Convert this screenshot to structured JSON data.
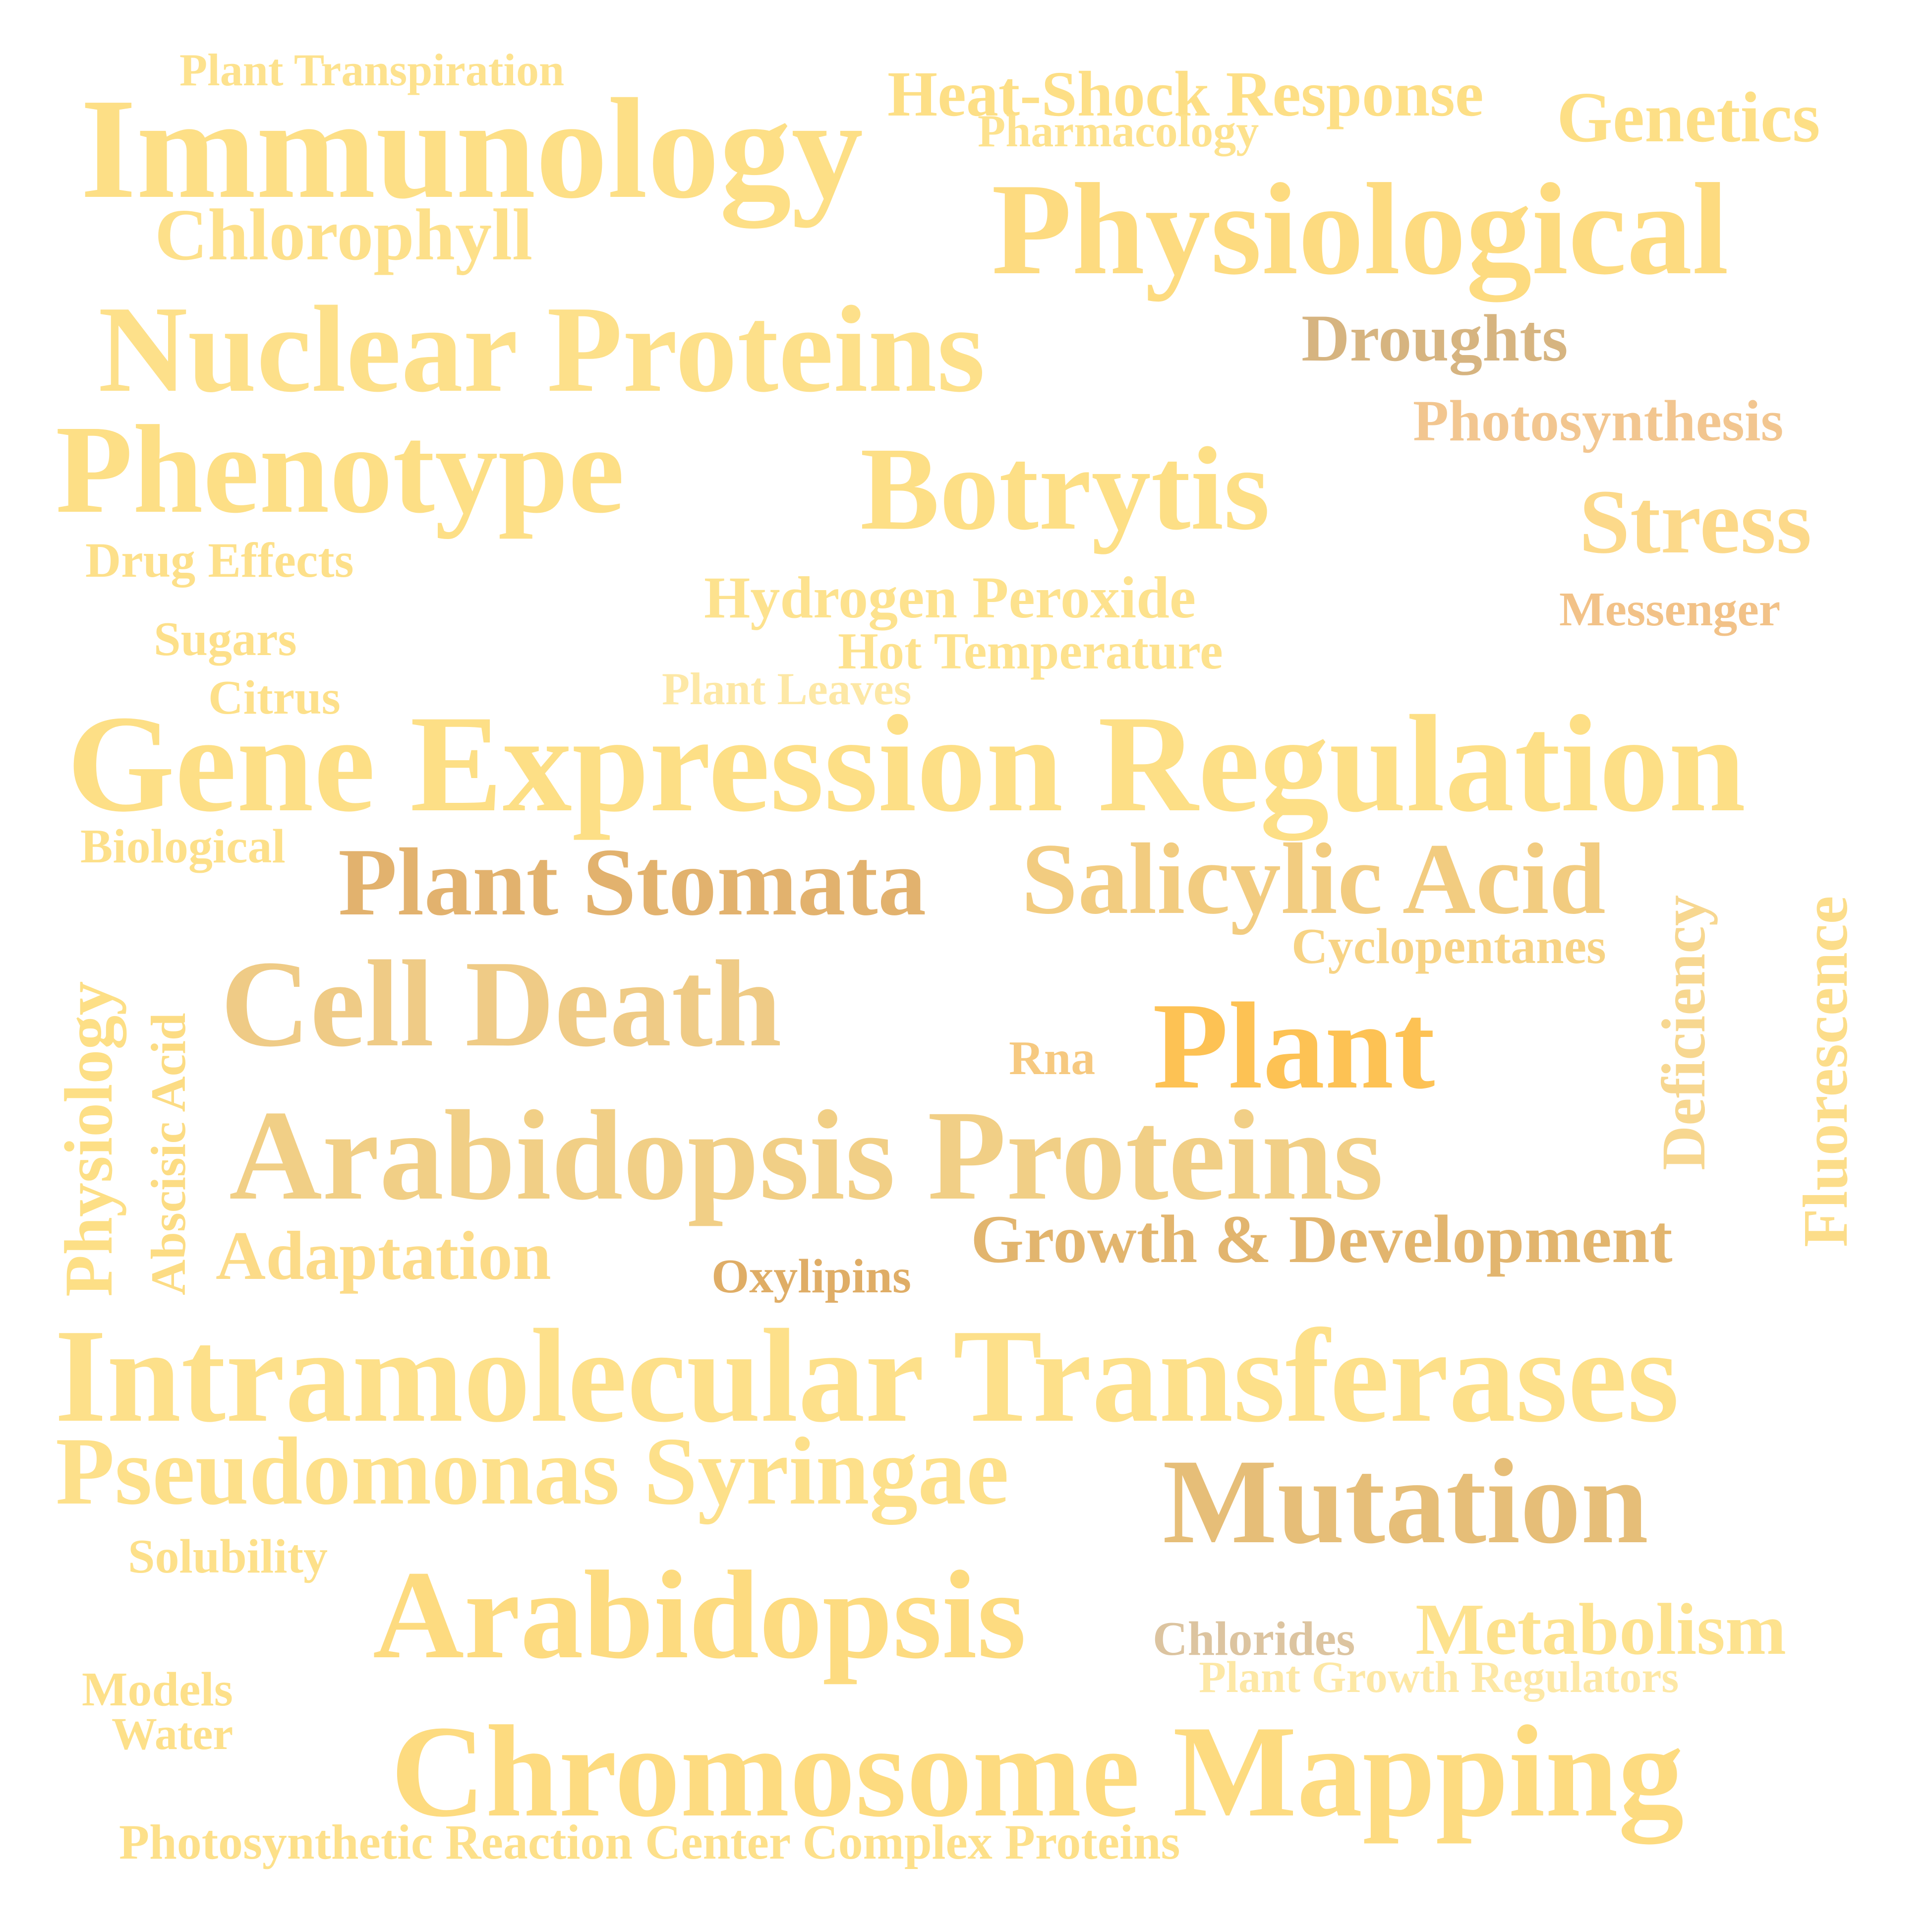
{
  "words": [
    {
      "text": "Plant Transpiration",
      "color": "#fde28e"
    },
    {
      "text": "Immunology",
      "color": "#fddf86"
    },
    {
      "text": "Heat-Shock Response",
      "color": "#fddf86"
    },
    {
      "text": "Pharmacology",
      "color": "#fde28e"
    },
    {
      "text": "Genetics",
      "color": "#fddf86"
    },
    {
      "text": "Chlorophyll",
      "color": "#fde08a"
    },
    {
      "text": "Physiological",
      "color": "#fddb80"
    },
    {
      "text": "Nuclear Proteins",
      "color": "#fde08a"
    },
    {
      "text": "Droughts",
      "color": "#d6b480"
    },
    {
      "text": "Photosynthesis",
      "color": "#f2c690"
    },
    {
      "text": "Phenotype",
      "color": "#fddf86"
    },
    {
      "text": "Botrytis",
      "color": "#fddf86"
    },
    {
      "text": "Stress",
      "color": "#fcd98a"
    },
    {
      "text": "Drug Effects",
      "color": "#fde08a"
    },
    {
      "text": "Hydrogen Peroxide",
      "color": "#fde28e"
    },
    {
      "text": "Messenger",
      "color": "#f2c288"
    },
    {
      "text": "Sugars",
      "color": "#fde08a"
    },
    {
      "text": "Hot Temperature",
      "color": "#fde28e"
    },
    {
      "text": "Plant Leaves",
      "color": "#fde8a6"
    },
    {
      "text": "Citrus",
      "color": "#fde08a"
    },
    {
      "text": "Gene Expression Regulation",
      "color": "#fddf86"
    },
    {
      "text": "Biological",
      "color": "#fde08a"
    },
    {
      "text": "Plant Stomata",
      "color": "#e2b26e"
    },
    {
      "text": "Salicylic Acid",
      "color": "#f2cc80"
    },
    {
      "text": "Fluorescence",
      "color": "#fcdd8a"
    },
    {
      "text": "Deficiency",
      "color": "#f7d790"
    },
    {
      "text": "Cyclopentanes",
      "color": "#f7d384"
    },
    {
      "text": "Physiology",
      "color": "#fddf86"
    },
    {
      "text": "Abscisic Acid",
      "color": "#fcdc84"
    },
    {
      "text": "Cell Death",
      "color": "#efcb86"
    },
    {
      "text": "Plant",
      "color": "#fdc254"
    },
    {
      "text": "Rna",
      "color": "#f6c980"
    },
    {
      "text": "Arabidopsis Proteins",
      "color": "#f1cf86"
    },
    {
      "text": "Growth & Development",
      "color": "#e2b56e"
    },
    {
      "text": "Adaptation",
      "color": "#fcdb88"
    },
    {
      "text": "Oxylipins",
      "color": "#dfad66"
    },
    {
      "text": "Intramolecular Transferases",
      "color": "#fde08a"
    },
    {
      "text": "Pseudomonas Syringae",
      "color": "#fde08a"
    },
    {
      "text": "Mutation",
      "color": "#e6be78"
    },
    {
      "text": "Solubility",
      "color": "#fde08a"
    },
    {
      "text": "Arabidopsis",
      "color": "#fddb80"
    },
    {
      "text": "Chlorides",
      "color": "#dcc4a0"
    },
    {
      "text": "Metabolism",
      "color": "#fde28e"
    },
    {
      "text": "Plant Growth Regulators",
      "color": "#fde8a6"
    },
    {
      "text": "Models",
      "color": "#fde08a"
    },
    {
      "text": "Water",
      "color": "#fde08a"
    },
    {
      "text": "Chromosome Mapping",
      "color": "#fddb80"
    },
    {
      "text": "Photosynthetic Reaction Center Complex Proteins",
      "color": "#fde08a"
    }
  ]
}
